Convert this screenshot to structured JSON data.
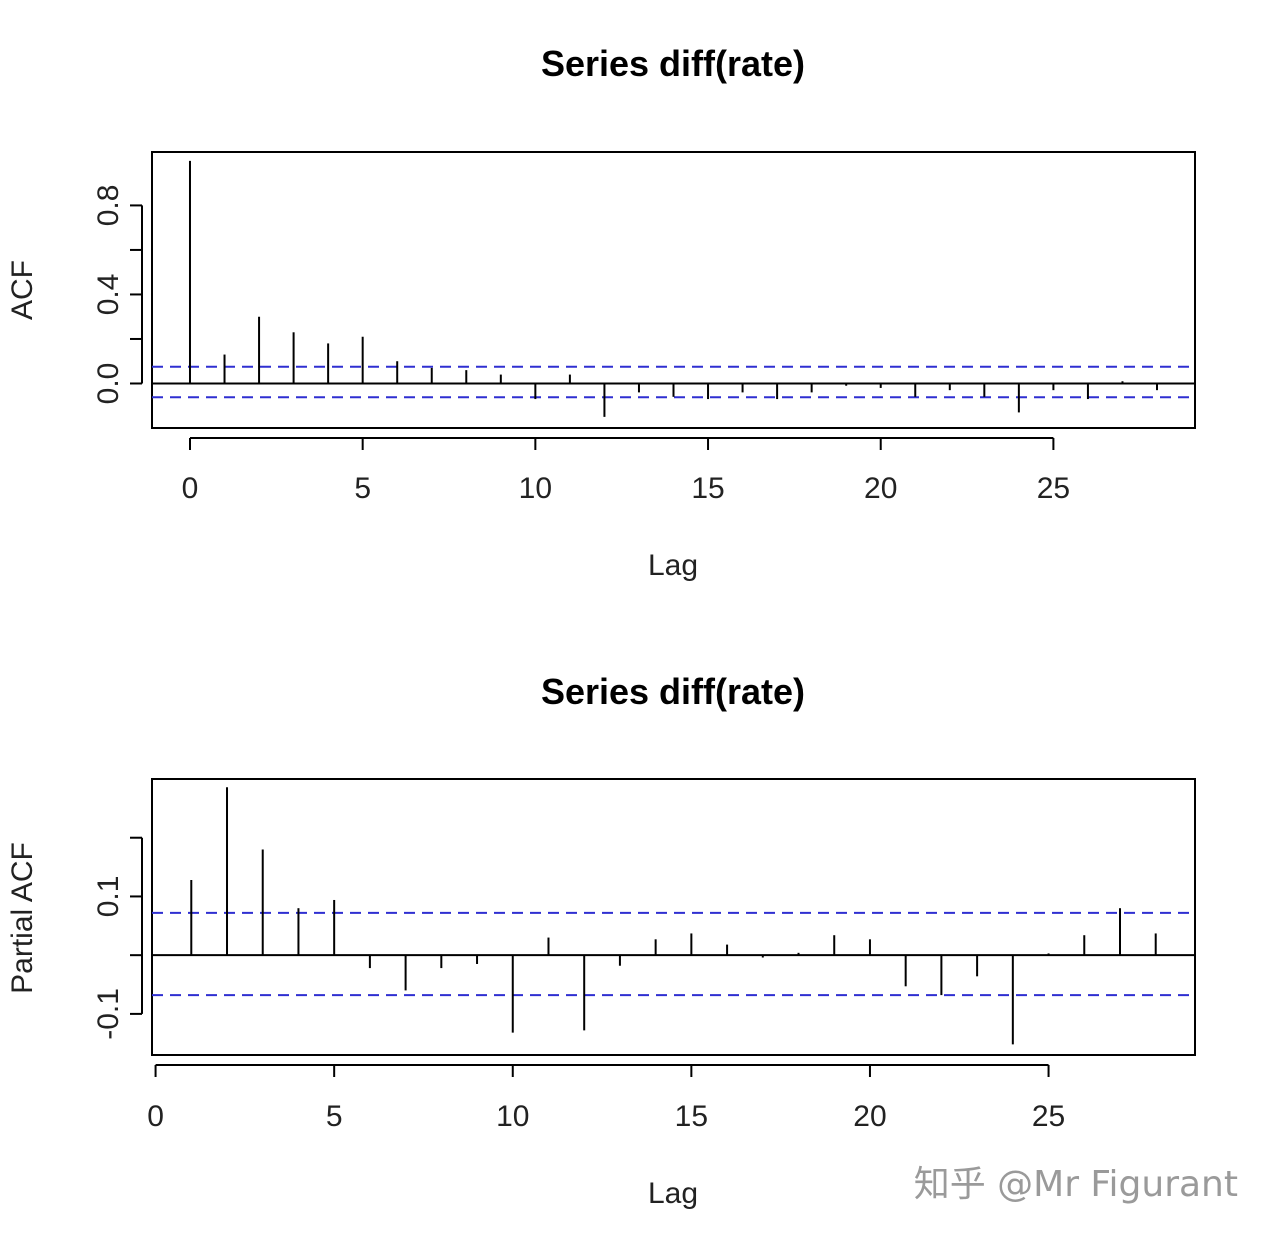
{
  "chart_data": [
    {
      "type": "bar",
      "title": "Series  diff(rate)",
      "xlabel": "Lag",
      "ylabel": "ACF",
      "xlim": [
        -1.1,
        29.1
      ],
      "ylim": [
        -0.2,
        1.04
      ],
      "xticks": [
        0,
        5,
        10,
        15,
        20,
        25
      ],
      "xtick_labels": [
        "0",
        "5",
        "10",
        "15",
        "20",
        "25"
      ],
      "yticks": [
        0.0,
        0.2,
        0.4,
        0.6,
        0.8
      ],
      "ytick_labels": [
        "0.0",
        "",
        "0.4",
        "",
        "0.8"
      ],
      "ci": [
        0.075,
        -0.062
      ],
      "lags": [
        0,
        1,
        2,
        3,
        4,
        5,
        6,
        7,
        8,
        9,
        10,
        11,
        12,
        13,
        14,
        15,
        16,
        17,
        18,
        19,
        20,
        21,
        22,
        23,
        24,
        25,
        26,
        27,
        28
      ],
      "values": [
        1.0,
        0.13,
        0.3,
        0.23,
        0.18,
        0.21,
        0.1,
        0.07,
        0.06,
        0.04,
        -0.07,
        0.04,
        -0.15,
        -0.04,
        -0.06,
        -0.07,
        -0.04,
        -0.07,
        -0.04,
        -0.01,
        -0.02,
        -0.06,
        -0.03,
        -0.06,
        -0.13,
        -0.03,
        -0.07,
        0.01,
        -0.03
      ]
    },
    {
      "type": "bar",
      "title": "Series  diff(rate)",
      "xlabel": "Lag",
      "ylabel": "Partial ACF",
      "xlim": [
        -0.1,
        29.1
      ],
      "ylim": [
        -0.17,
        0.3
      ],
      "xticks": [
        0,
        5,
        10,
        15,
        20,
        25
      ],
      "xtick_labels": [
        "0",
        "5",
        "10",
        "15",
        "20",
        "25"
      ],
      "yticks": [
        -0.1,
        0.0,
        0.1,
        0.2
      ],
      "ytick_labels": [
        "-0.1",
        "",
        "0.1",
        ""
      ],
      "ci": [
        0.072,
        -0.068
      ],
      "lags": [
        1,
        2,
        3,
        4,
        5,
        6,
        7,
        8,
        9,
        10,
        11,
        12,
        13,
        14,
        15,
        16,
        17,
        18,
        19,
        20,
        21,
        22,
        23,
        24,
        25,
        26,
        27,
        28
      ],
      "values": [
        0.128,
        0.286,
        0.18,
        0.08,
        0.094,
        -0.022,
        -0.06,
        -0.022,
        -0.015,
        -0.132,
        0.03,
        -0.128,
        -0.018,
        0.027,
        0.037,
        0.018,
        -0.004,
        0.004,
        0.034,
        0.027,
        -0.053,
        -0.068,
        -0.036,
        -0.152,
        0.003,
        0.034,
        0.08,
        0.037
      ]
    }
  ],
  "watermark": "知乎 @Mr Figurant",
  "colors": {
    "ci_line": "#2f2fd1",
    "bars": "#000000",
    "frame": "#000000"
  }
}
